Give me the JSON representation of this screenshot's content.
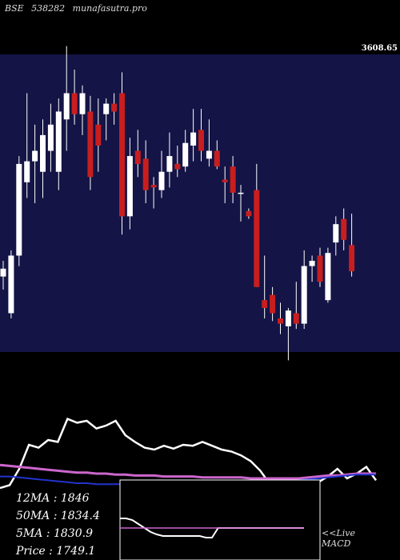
{
  "header": {
    "exchange": "BSE",
    "symbol": "538282",
    "site": "munafasutra.pro"
  },
  "price_label": "3608.65",
  "indicators": {
    "ma12": {
      "label": "12MA",
      "value": "1846"
    },
    "ma50": {
      "label": "50MA",
      "value": "1834.4"
    },
    "ma5": {
      "label": "5MA",
      "value": "1830.9"
    },
    "price": {
      "label": "Price",
      "value": "1749.1"
    }
  },
  "macd_label": {
    "prefix": "<<Live",
    "name": "MACD"
  },
  "colors": {
    "panel_bg": "#141446",
    "bull": "#ffffff",
    "bear": "#c81e1e",
    "ma_line": "#ffffff",
    "ema_line": "#cc66cc",
    "blue_line": "#2233cc",
    "macd_bg": "#000000"
  },
  "chart_data": [
    {
      "type": "candlestick",
      "ylim": [
        0,
        100
      ],
      "candles": [
        {
          "o": 22,
          "h": 28,
          "l": 17,
          "c": 25
        },
        {
          "o": 8,
          "h": 32,
          "l": 6,
          "c": 30
        },
        {
          "o": 30,
          "h": 68,
          "l": 26,
          "c": 65
        },
        {
          "o": 58,
          "h": 92,
          "l": 52,
          "c": 66
        },
        {
          "o": 66,
          "h": 80,
          "l": 50,
          "c": 70
        },
        {
          "o": 62,
          "h": 82,
          "l": 52,
          "c": 76
        },
        {
          "o": 70,
          "h": 88,
          "l": 62,
          "c": 80
        },
        {
          "o": 62,
          "h": 90,
          "l": 55,
          "c": 85
        },
        {
          "o": 82,
          "h": 110,
          "l": 70,
          "c": 92
        },
        {
          "o": 92,
          "h": 101,
          "l": 80,
          "c": 84
        },
        {
          "o": 84,
          "h": 95,
          "l": 76,
          "c": 92
        },
        {
          "o": 85,
          "h": 91,
          "l": 55,
          "c": 60
        },
        {
          "o": 80,
          "h": 90,
          "l": 62,
          "c": 72
        },
        {
          "o": 84,
          "h": 90,
          "l": 74,
          "c": 88
        },
        {
          "o": 88,
          "h": 92,
          "l": 80,
          "c": 85
        },
        {
          "o": 92,
          "h": 100,
          "l": 38,
          "c": 45
        },
        {
          "o": 45,
          "h": 75,
          "l": 40,
          "c": 68
        },
        {
          "o": 70,
          "h": 78,
          "l": 60,
          "c": 65
        },
        {
          "o": 67,
          "h": 74,
          "l": 50,
          "c": 55
        },
        {
          "o": 57,
          "h": 60,
          "l": 48,
          "c": 56
        },
        {
          "o": 55,
          "h": 70,
          "l": 52,
          "c": 62
        },
        {
          "o": 62,
          "h": 77,
          "l": 56,
          "c": 68
        },
        {
          "o": 65,
          "h": 72,
          "l": 60,
          "c": 63
        },
        {
          "o": 64,
          "h": 78,
          "l": 62,
          "c": 73
        },
        {
          "o": 72,
          "h": 86,
          "l": 66,
          "c": 77
        },
        {
          "o": 78,
          "h": 86,
          "l": 66,
          "c": 70
        },
        {
          "o": 67,
          "h": 82,
          "l": 64,
          "c": 70
        },
        {
          "o": 70,
          "h": 74,
          "l": 63,
          "c": 64
        },
        {
          "o": 59,
          "h": 64,
          "l": 50,
          "c": 58
        },
        {
          "o": 64,
          "h": 68,
          "l": 50,
          "c": 54
        },
        {
          "o": 54,
          "h": 57,
          "l": 43,
          "c": 54
        },
        {
          "o": 47,
          "h": 48,
          "l": 44,
          "c": 45
        },
        {
          "o": 55,
          "h": 65,
          "l": 18,
          "c": 18
        },
        {
          "o": 13,
          "h": 30,
          "l": 6,
          "c": 10
        },
        {
          "o": 15,
          "h": 18,
          "l": 5,
          "c": 8
        },
        {
          "o": 6,
          "h": 12,
          "l": 0,
          "c": 4
        },
        {
          "o": 3,
          "h": 10,
          "l": -10,
          "c": 9
        },
        {
          "o": 8,
          "h": 20,
          "l": 2,
          "c": 4
        },
        {
          "o": 4,
          "h": 32,
          "l": 2,
          "c": 26
        },
        {
          "o": 26,
          "h": 30,
          "l": 20,
          "c": 28
        },
        {
          "o": 30,
          "h": 33,
          "l": 18,
          "c": 20
        },
        {
          "o": 13,
          "h": 33,
          "l": 12,
          "c": 31
        },
        {
          "o": 35,
          "h": 45,
          "l": 30,
          "c": 42
        },
        {
          "o": 44,
          "h": 48,
          "l": 32,
          "c": 36
        },
        {
          "o": 34,
          "h": 46,
          "l": 22,
          "c": 24
        }
      ]
    },
    {
      "type": "line",
      "ylim": [
        0,
        100
      ],
      "series": [
        {
          "values": [
            0,
            3,
            20,
            45,
            42,
            50,
            48,
            72,
            68,
            70,
            62,
            65,
            70,
            55,
            48,
            42,
            40,
            44,
            41,
            45,
            44,
            48,
            44,
            40,
            38,
            34,
            28,
            18,
            4,
            2,
            8,
            5,
            3,
            6,
            12,
            20,
            10,
            15,
            22,
            8
          ]
        },
        {
          "values": [
            24,
            23,
            22,
            21,
            20,
            19,
            18,
            17,
            16,
            16,
            15,
            15,
            14,
            14,
            13,
            13,
            13,
            12,
            12,
            12,
            12,
            11,
            11,
            11,
            11,
            11,
            10,
            10,
            10,
            10,
            10,
            10,
            11,
            12,
            13,
            13,
            14,
            15,
            15,
            15
          ]
        },
        {
          "values": [
            12,
            12,
            11,
            10,
            9,
            8,
            7,
            6,
            5,
            5,
            4,
            4,
            4,
            4,
            4,
            4,
            4,
            4,
            4,
            4,
            4,
            4,
            4,
            4,
            4,
            4,
            4,
            4,
            5,
            6,
            7,
            8,
            9,
            10,
            11,
            12,
            13,
            14,
            14,
            14
          ]
        }
      ]
    },
    {
      "type": "line",
      "ylim": [
        0,
        100
      ],
      "series": [
        {
          "values": [
            52,
            52,
            50,
            45,
            40,
            35,
            32,
            30,
            30,
            30,
            30,
            30,
            30,
            30,
            28,
            28,
            40,
            40,
            40,
            40,
            40,
            40,
            40,
            40,
            40,
            40,
            40,
            40,
            40,
            40,
            40
          ]
        },
        {
          "values": [
            40,
            40,
            40,
            40,
            40,
            40,
            40,
            40,
            40,
            40,
            40,
            40,
            40,
            40,
            40,
            40,
            40,
            40,
            40,
            40,
            40,
            40,
            40,
            40,
            40,
            40,
            40,
            40,
            40,
            40,
            40
          ]
        }
      ]
    }
  ]
}
